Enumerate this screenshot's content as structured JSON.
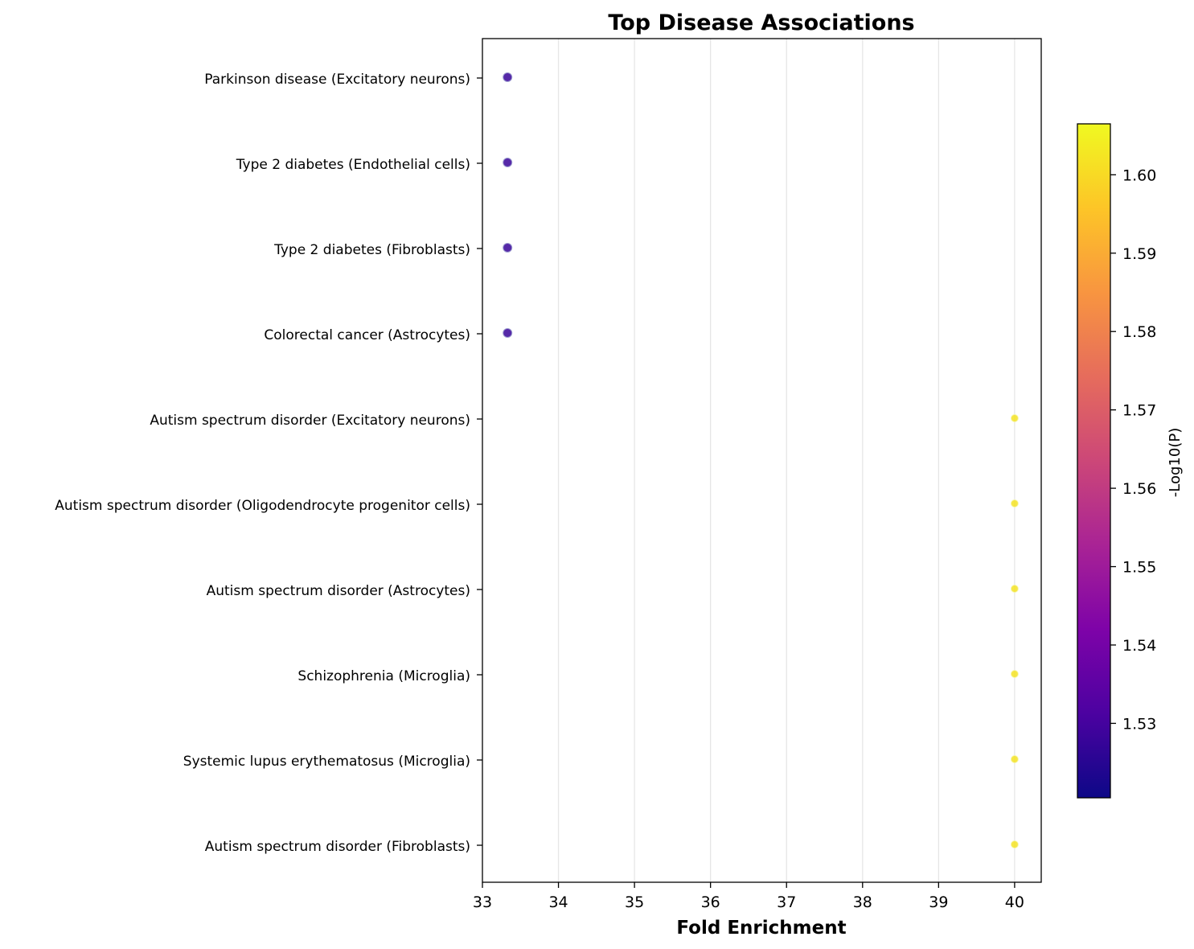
{
  "chart_data": {
    "type": "scatter",
    "title": "Top Disease Associations",
    "xlabel": "Fold Enrichment",
    "ylabel": "",
    "xlim": [
      33,
      40.35
    ],
    "xticks": [
      33,
      34,
      35,
      36,
      37,
      38,
      39,
      40
    ],
    "grid": "x-axis vertical lines",
    "colorbar": {
      "label": "-Log10(P)",
      "colormap": "plasma",
      "range": [
        1.5205,
        1.6065
      ],
      "ticks": [
        1.53,
        1.54,
        1.55,
        1.56,
        1.57,
        1.58,
        1.59,
        1.6
      ],
      "tick_labels": [
        "1.53",
        "1.54",
        "1.55",
        "1.56",
        "1.57",
        "1.58",
        "1.59",
        "1.60"
      ]
    },
    "points": [
      {
        "label": "Parkinson disease (Excitatory neurons)",
        "fold_enrichment": 33.33,
        "neg_log10_p": 1.528
      },
      {
        "label": "Type 2 diabetes (Endothelial cells)",
        "fold_enrichment": 33.33,
        "neg_log10_p": 1.528
      },
      {
        "label": "Type 2 diabetes (Fibroblasts)",
        "fold_enrichment": 33.33,
        "neg_log10_p": 1.528
      },
      {
        "label": "Colorectal cancer (Astrocytes)",
        "fold_enrichment": 33.33,
        "neg_log10_p": 1.528
      },
      {
        "label": "Autism spectrum disorder (Excitatory neurons)",
        "fold_enrichment": 40.0,
        "neg_log10_p": 1.602
      },
      {
        "label": "Autism spectrum disorder (Oligodendrocyte progenitor cells)",
        "fold_enrichment": 40.0,
        "neg_log10_p": 1.602
      },
      {
        "label": "Autism spectrum disorder (Astrocytes)",
        "fold_enrichment": 40.0,
        "neg_log10_p": 1.602
      },
      {
        "label": "Schizophrenia (Microglia)",
        "fold_enrichment": 40.0,
        "neg_log10_p": 1.602
      },
      {
        "label": "Systemic lupus erythematosus (Microglia)",
        "fold_enrichment": 40.0,
        "neg_log10_p": 1.602
      },
      {
        "label": "Autism spectrum disorder (Fibroblasts)",
        "fold_enrichment": 40.0,
        "neg_log10_p": 1.602
      }
    ],
    "colors": {
      "low": "#0d0887",
      "high": "#f0f921",
      "grid": "#e6e6e6",
      "axis": "#000000"
    }
  }
}
